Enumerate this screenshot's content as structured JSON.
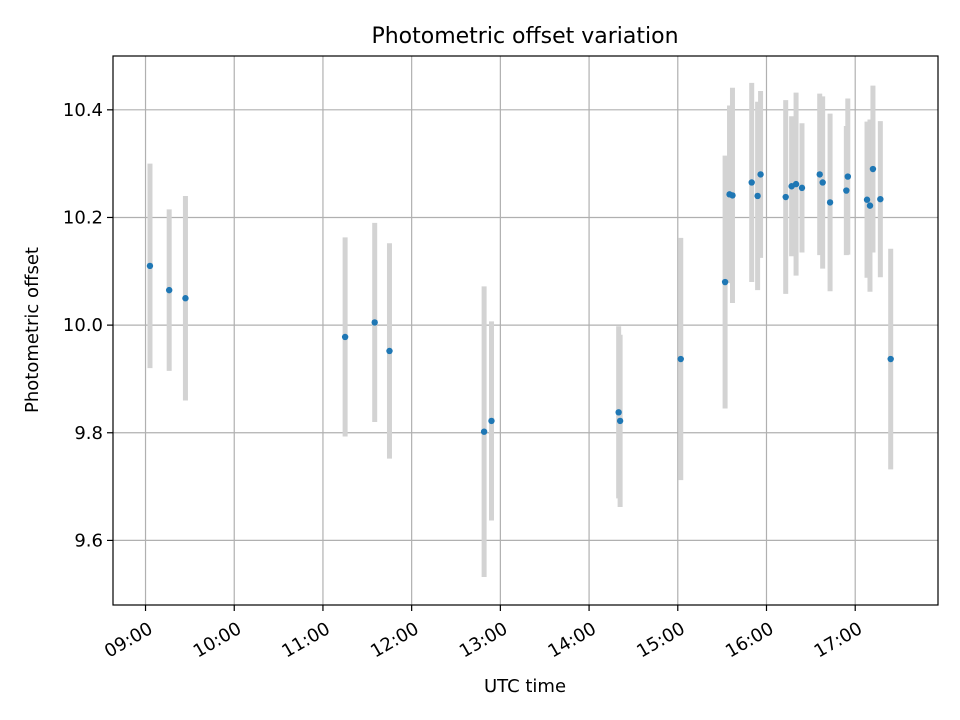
{
  "chart_data": {
    "type": "scatter",
    "title": "Photometric offset variation",
    "xlabel": "UTC time",
    "ylabel": "Photometric offset",
    "xlim": [
      "08:38",
      "17:56"
    ],
    "ylim": [
      9.48,
      10.5
    ],
    "x_ticks": [
      "09:00",
      "10:00",
      "11:00",
      "12:00",
      "13:00",
      "14:00",
      "15:00",
      "16:00",
      "17:00"
    ],
    "y_ticks": [
      9.6,
      9.8,
      10.0,
      10.2,
      10.4
    ],
    "grid": true,
    "colors": {
      "point": "#1f77b4",
      "errorbar": "#d3d3d3",
      "grid": "#b0b0b0"
    },
    "series": [
      {
        "points": [
          {
            "x": "09:03",
            "y": 10.11,
            "err": 0.19
          },
          {
            "x": "09:16",
            "y": 10.065,
            "err": 0.15
          },
          {
            "x": "09:27",
            "y": 10.05,
            "err": 0.19
          },
          {
            "x": "11:15",
            "y": 9.978,
            "err": 0.185
          },
          {
            "x": "11:35",
            "y": 10.005,
            "err": 0.185
          },
          {
            "x": "11:45",
            "y": 9.952,
            "err": 0.2
          },
          {
            "x": "12:49",
            "y": 9.802,
            "err": 0.27
          },
          {
            "x": "12:54",
            "y": 9.822,
            "err": 0.185
          },
          {
            "x": "14:20",
            "y": 9.838,
            "err": 0.16
          },
          {
            "x": "14:21",
            "y": 9.822,
            "err": 0.16
          },
          {
            "x": "15:02",
            "y": 9.937,
            "err": 0.225
          },
          {
            "x": "15:32",
            "y": 10.08,
            "err": 0.235
          },
          {
            "x": "15:35",
            "y": 10.243,
            "err": 0.165
          },
          {
            "x": "15:37",
            "y": 10.241,
            "err": 0.2
          },
          {
            "x": "15:50",
            "y": 10.265,
            "err": 0.185
          },
          {
            "x": "15:54",
            "y": 10.24,
            "err": 0.175
          },
          {
            "x": "15:56",
            "y": 10.28,
            "err": 0.155
          },
          {
            "x": "16:13",
            "y": 10.238,
            "err": 0.18
          },
          {
            "x": "16:17",
            "y": 10.258,
            "err": 0.13
          },
          {
            "x": "16:20",
            "y": 10.262,
            "err": 0.17
          },
          {
            "x": "16:24",
            "y": 10.255,
            "err": 0.12
          },
          {
            "x": "16:36",
            "y": 10.28,
            "err": 0.15
          },
          {
            "x": "16:38",
            "y": 10.265,
            "err": 0.16
          },
          {
            "x": "16:43",
            "y": 10.228,
            "err": 0.165
          },
          {
            "x": "16:54",
            "y": 10.25,
            "err": 0.12
          },
          {
            "x": "16:55",
            "y": 10.276,
            "err": 0.145
          },
          {
            "x": "17:08",
            "y": 10.233,
            "err": 0.145
          },
          {
            "x": "17:10",
            "y": 10.222,
            "err": 0.16
          },
          {
            "x": "17:12",
            "y": 10.29,
            "err": 0.155
          },
          {
            "x": "17:17",
            "y": 10.234,
            "err": 0.145
          },
          {
            "x": "17:24",
            "y": 9.937,
            "err": 0.205
          }
        ]
      }
    ]
  }
}
